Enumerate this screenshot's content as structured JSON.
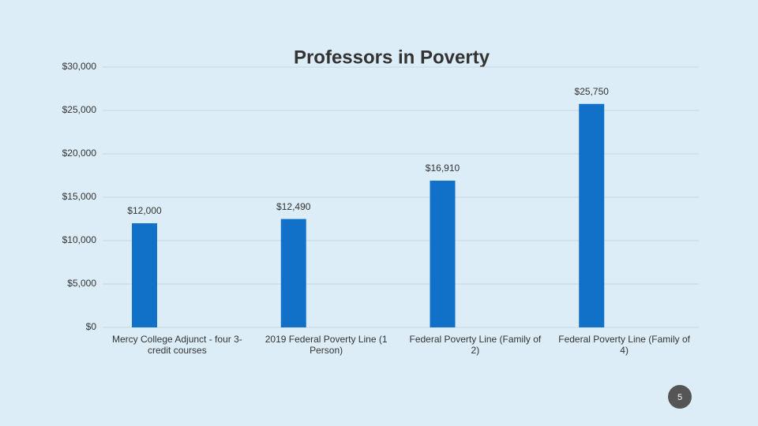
{
  "chart_data": {
    "type": "bar",
    "title": "Professors in Poverty",
    "categories": [
      "Mercy College Adjunct - four 3-credit courses",
      "2019 Federal Poverty Line (1 Person)",
      "Federal Poverty Line (Family of 2)",
      "Federal Poverty Line (Family of 4)"
    ],
    "values": [
      12000,
      12490,
      16910,
      25750
    ],
    "value_labels": [
      "$12,000",
      "$12,490",
      "$16,910",
      "$25,750"
    ],
    "color": "#1170c8",
    "ylim": [
      0,
      30000
    ],
    "yticks": [
      {
        "value": 0,
        "label": "$0"
      },
      {
        "value": 5000,
        "label": "$5,000"
      },
      {
        "value": 10000,
        "label": "$10,000"
      },
      {
        "value": 15000,
        "label": "$15,000"
      },
      {
        "value": 20000,
        "label": "$20,000"
      },
      {
        "value": 25000,
        "label": "$25,000"
      },
      {
        "value": 30000,
        "label": "$30,000"
      }
    ],
    "grid": true
  },
  "slide": {
    "page_number": "5"
  }
}
